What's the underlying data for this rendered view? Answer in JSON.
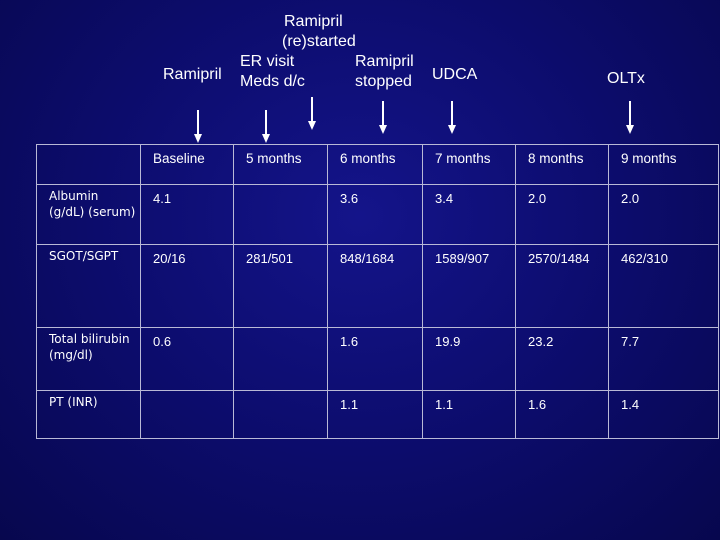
{
  "timeline": {
    "ramipril": "Ramipril",
    "ramipril_restarted": [
      "Ramipril",
      "(re)started"
    ],
    "er_visit": [
      "ER visit",
      "Meds d/c"
    ],
    "ramipril_stopped": [
      "Ramipril",
      "stopped"
    ],
    "udca": "UDCA",
    "oltx": "OLTx"
  },
  "table": {
    "columns": [
      "",
      "Baseline",
      "5 months",
      "6 months",
      "7 months",
      "8 months",
      "9 months"
    ],
    "rows": [
      {
        "label": "Albumin (g/dL) (serum)",
        "values": [
          "4.1",
          "",
          "3.6",
          "3.4",
          "2.0",
          "2.0"
        ]
      },
      {
        "label": "SGOT/SGPT",
        "values": [
          "20/16",
          "281/501",
          "848/1684",
          "1589/907",
          "2570/1484",
          "462/310"
        ]
      },
      {
        "label": "Total bilirubin (mg/dl)",
        "values": [
          "0.6",
          "",
          "1.6",
          "19.9",
          "23.2",
          "7.7"
        ]
      },
      {
        "label": "PT (INR)",
        "values": [
          "",
          "",
          "1.1",
          "1.1",
          "1.6",
          "1.4"
        ]
      }
    ]
  }
}
